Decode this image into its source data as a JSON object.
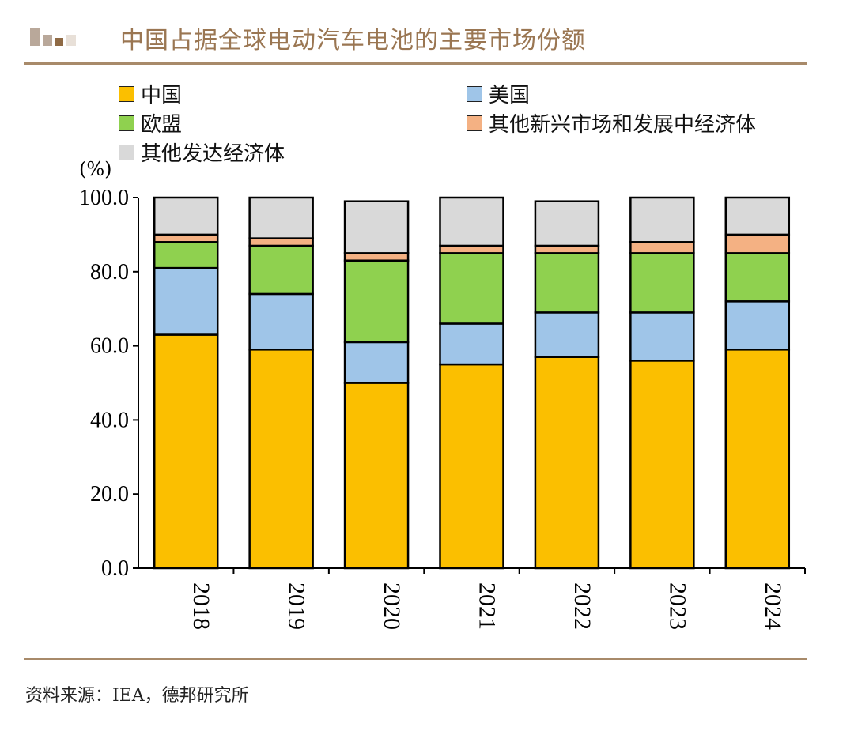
{
  "title": "中国占据全球电动汽车电池的主要市场份额",
  "source": "资料来源：IEA，德邦研究所",
  "chart_data": {
    "type": "bar",
    "stacked": true,
    "title": "中国占据全球电动汽车电池的主要市场份额",
    "ylabel": "(%)",
    "xlabel": "",
    "ylim": [
      0,
      100
    ],
    "yticks": [
      "0.0",
      "20.0",
      "40.0",
      "60.0",
      "80.0",
      "100.0"
    ],
    "categories": [
      "2018",
      "2019",
      "2020",
      "2021",
      "2022",
      "2023",
      "2024"
    ],
    "legend_position": "top",
    "series": [
      {
        "name": "中国",
        "color": "#fbbf00",
        "values": [
          63,
          59,
          50,
          55,
          57,
          56,
          59
        ]
      },
      {
        "name": "美国",
        "color": "#9fc5e8",
        "values": [
          18,
          15,
          11,
          11,
          12,
          13,
          13
        ]
      },
      {
        "name": "欧盟",
        "color": "#8fd14f",
        "values": [
          7,
          13,
          22,
          19,
          16,
          16,
          13
        ]
      },
      {
        "name": "其他新兴市场和发展中经济体",
        "color": "#f4b183",
        "values": [
          2,
          2,
          2,
          2,
          2,
          3,
          5
        ]
      },
      {
        "name": "其他发达经济体",
        "color": "#d9d9d9",
        "values": [
          10,
          11,
          14,
          13,
          12,
          12,
          10
        ]
      }
    ]
  }
}
